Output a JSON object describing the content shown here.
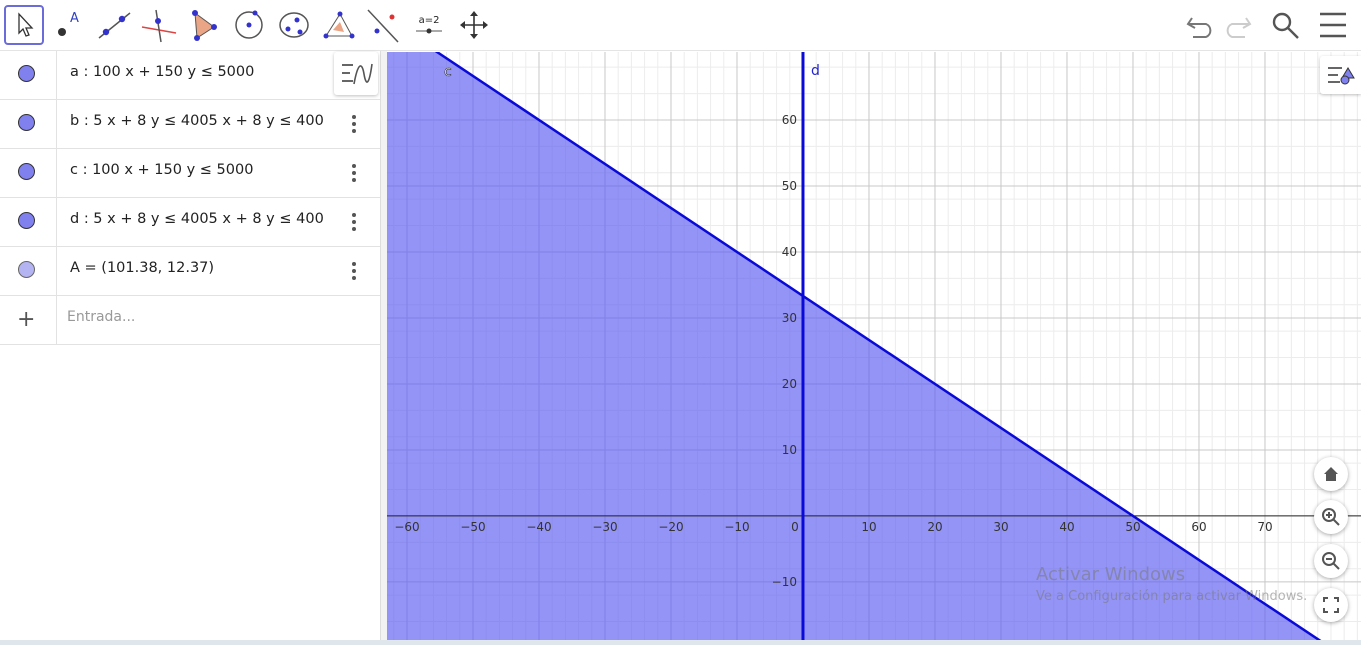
{
  "toolbar": {
    "tools": [
      "a=2"
    ]
  },
  "algebra": {
    "rows": [
      "a :  100 x + 150 y ≤ 5000",
      "b :  5 x + 8 y ≤ 4005 x + 8 y ≤ 400",
      "c :  100 x + 150 y ≤ 5000",
      "d :  5 x + 8 y ≤ 4005 x + 8 y ≤ 400",
      "A = (101.38, 12.37)"
    ],
    "input_placeholder": "Entrada..."
  },
  "graph": {
    "xlim": [
      -63.03,
      84.55
    ],
    "ylim": [
      -18.8,
      70.3
    ],
    "xticks": [
      {
        "value": -60,
        "label": "−60"
      },
      {
        "value": -50,
        "label": "−50"
      },
      {
        "value": -40,
        "label": "−40"
      },
      {
        "value": -30,
        "label": "−30"
      },
      {
        "value": -20,
        "label": "−20"
      },
      {
        "value": -10,
        "label": "−10"
      },
      0,
      10,
      20,
      30,
      40,
      50,
      60,
      70
    ],
    "yticks": [
      {
        "value": -10,
        "label": "−10"
      },
      10,
      20,
      30,
      40,
      50,
      60
    ],
    "grid": true,
    "half_plane": {
      "label": "c",
      "a": 100,
      "b": 150,
      "rhs": 5000,
      "color": "#5a5af2"
    },
    "vertical_line": {
      "label": "d"
    }
  },
  "watermark": {
    "title": "Activar Windows",
    "subtitle": "Ve a Configuración para activar Windows."
  }
}
